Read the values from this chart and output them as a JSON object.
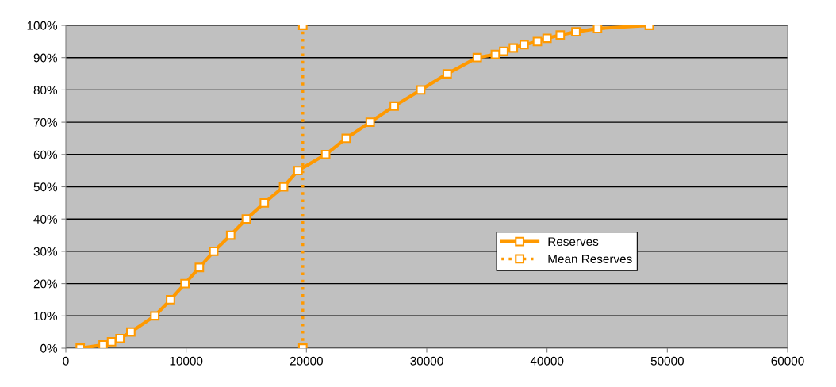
{
  "chart_data": {
    "type": "line",
    "xlim": [
      0,
      60000
    ],
    "xticks": [
      0,
      10000,
      20000,
      30000,
      40000,
      50000,
      60000
    ],
    "ylim": [
      0,
      100
    ],
    "yticks": [
      {
        "value": 0,
        "label": "0%"
      },
      {
        "value": 10,
        "label": "10%"
      },
      {
        "value": 20,
        "label": "20%"
      },
      {
        "value": 30,
        "label": "30%"
      },
      {
        "value": 40,
        "label": "40%"
      },
      {
        "value": 50,
        "label": "50%"
      },
      {
        "value": 60,
        "label": "60%"
      },
      {
        "value": 70,
        "label": "70%"
      },
      {
        "value": 80,
        "label": "80%"
      },
      {
        "value": 90,
        "label": "90%"
      },
      {
        "value": 100,
        "label": "100%"
      }
    ],
    "grid": "y",
    "legend": "right",
    "marker": "square",
    "series": [
      {
        "name": "Reserves",
        "color": "#ff9900",
        "line_style": "solid",
        "x": [
          1200,
          3100,
          3800,
          4500,
          5400,
          7400,
          8700,
          9900,
          11100,
          12300,
          13700,
          15000,
          16500,
          18100,
          19300,
          21600,
          23300,
          25300,
          27300,
          29500,
          31700,
          34200,
          35700,
          36400,
          37200,
          38100,
          39200,
          40000,
          41100,
          42400,
          44200,
          48500
        ],
        "values": [
          0,
          1,
          2,
          3,
          5,
          10,
          15,
          20,
          25,
          30,
          35,
          40,
          45,
          50,
          55,
          60,
          65,
          70,
          75,
          80,
          85,
          90,
          91,
          92,
          93,
          94,
          95,
          96,
          97,
          98,
          99,
          100
        ]
      },
      {
        "name": "Mean Reserves",
        "color": "#ff9900",
        "line_style": "dotted",
        "x": [
          19700,
          19700
        ],
        "values": [
          0,
          100
        ]
      }
    ]
  }
}
